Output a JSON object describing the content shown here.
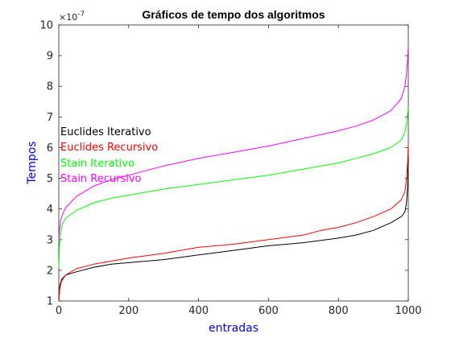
{
  "chart_data": {
    "type": "line",
    "title": "Gráficos de tempo dos algoritmos",
    "xlabel": "entradas",
    "ylabel": "Tempos",
    "xlim": [
      0,
      1000
    ],
    "ylim": [
      1,
      10
    ],
    "y_multiplier_label": "×10",
    "y_multiplier_exponent": "-7",
    "grid": false,
    "legend_placement": "left",
    "x_ticks": [
      "0",
      "200",
      "400",
      "600",
      "800",
      "1000"
    ],
    "y_ticks": [
      "1",
      "2",
      "3",
      "4",
      "5",
      "6",
      "7",
      "8",
      "9",
      "10"
    ],
    "x_tick_values": [
      0,
      200,
      400,
      600,
      800,
      1000
    ],
    "y_tick_values": [
      1,
      2,
      3,
      4,
      5,
      6,
      7,
      8,
      9,
      10
    ],
    "label_color": "#0000ff",
    "series": [
      {
        "name": "Euclides Iterativo",
        "color": "#000000",
        "x": [
          0,
          3,
          8,
          20,
          50,
          100,
          150,
          200,
          300,
          400,
          500,
          600,
          700,
          800,
          850,
          900,
          950,
          980,
          990,
          995,
          998,
          1000
        ],
        "values": [
          1.0,
          1.5,
          1.7,
          1.85,
          1.95,
          2.1,
          2.2,
          2.25,
          2.35,
          2.5,
          2.65,
          2.8,
          2.9,
          3.05,
          3.15,
          3.3,
          3.55,
          3.75,
          3.9,
          4.2,
          4.7,
          5.7
        ]
      },
      {
        "name": "Euclides Recursivo",
        "color": "#ff0000",
        "x": [
          0,
          3,
          8,
          20,
          50,
          100,
          150,
          200,
          300,
          400,
          500,
          600,
          700,
          750,
          800,
          850,
          900,
          950,
          980,
          990,
          995,
          998,
          1000
        ],
        "values": [
          1.0,
          1.4,
          1.65,
          1.85,
          2.05,
          2.2,
          2.3,
          2.4,
          2.55,
          2.75,
          2.85,
          3.0,
          3.15,
          3.3,
          3.4,
          3.55,
          3.75,
          4.0,
          4.3,
          4.55,
          5.0,
          5.5,
          6.1
        ]
      },
      {
        "name": "Stain Iterativo",
        "color": "#00ff00",
        "x": [
          0,
          2,
          5,
          10,
          20,
          50,
          100,
          150,
          200,
          300,
          400,
          500,
          600,
          700,
          800,
          850,
          900,
          950,
          980,
          990,
          995,
          998,
          1000
        ],
        "values": [
          2.1,
          2.8,
          3.2,
          3.5,
          3.7,
          3.95,
          4.2,
          4.35,
          4.45,
          4.65,
          4.8,
          4.95,
          5.1,
          5.3,
          5.5,
          5.65,
          5.8,
          6.0,
          6.25,
          6.5,
          6.8,
          7.1,
          7.3
        ]
      },
      {
        "name": "Stain Recursivo",
        "color": "#ff00ff",
        "x": [
          0,
          2,
          5,
          10,
          20,
          50,
          100,
          150,
          200,
          300,
          400,
          500,
          600,
          700,
          800,
          850,
          900,
          950,
          980,
          990,
          995,
          998,
          1000
        ],
        "values": [
          3.0,
          3.3,
          3.6,
          3.8,
          4.05,
          4.4,
          4.75,
          4.95,
          5.1,
          5.4,
          5.65,
          5.85,
          6.05,
          6.3,
          6.55,
          6.7,
          6.9,
          7.2,
          7.6,
          8.0,
          8.4,
          8.9,
          9.3
        ]
      }
    ]
  }
}
